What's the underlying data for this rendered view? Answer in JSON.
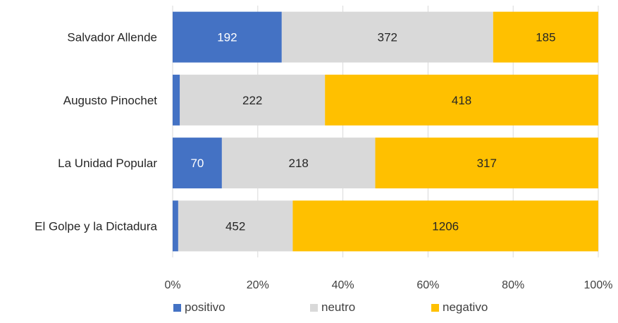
{
  "chart_data": {
    "type": "bar",
    "orientation": "horizontal",
    "stacked": "percent",
    "categories": [
      "Salvador Allende",
      "Augusto Pinochet",
      "La Unidad Popular",
      "El Golpe y la Dictadura"
    ],
    "series": [
      {
        "name": "positivo",
        "color": "#4472C4",
        "values": [
          192,
          11,
          70,
          22
        ]
      },
      {
        "name": "neutro",
        "color": "#D9D9D9",
        "values": [
          372,
          222,
          218,
          452
        ]
      },
      {
        "name": "negativo",
        "color": "#FFC000",
        "values": [
          185,
          418,
          317,
          1206
        ]
      }
    ],
    "x_ticks": [
      "0%",
      "20%",
      "40%",
      "60%",
      "80%",
      "100%"
    ],
    "xlim": [
      0,
      100
    ],
    "grid": true,
    "legend_position": "bottom",
    "label_colors": {
      "positivo": "#ffffff",
      "neutro": "#262626",
      "negativo": "#262626"
    }
  }
}
